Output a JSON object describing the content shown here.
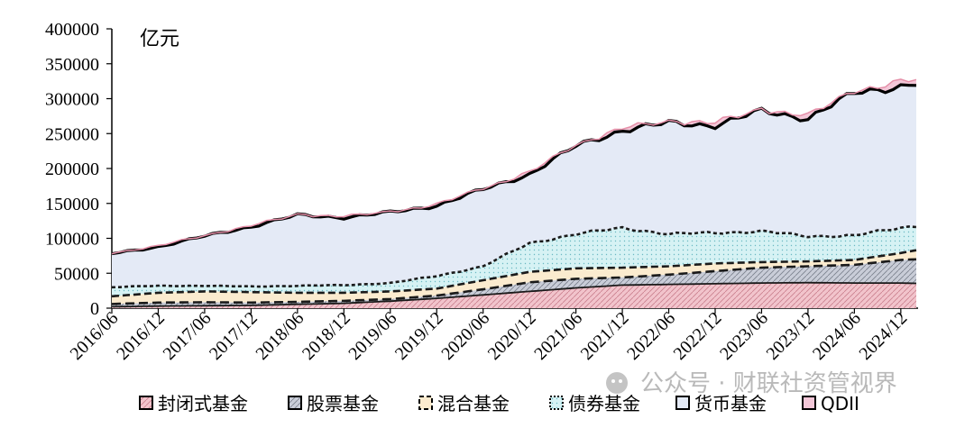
{
  "chart_data": {
    "type": "area",
    "stacked": true,
    "unit_label": "亿元",
    "ylim": [
      0,
      400000
    ],
    "y_ticks": [
      0,
      50000,
      100000,
      150000,
      200000,
      250000,
      300000,
      350000,
      400000
    ],
    "x_tick_labels": [
      "2016/06",
      "2016/12",
      "2017/06",
      "2017/12",
      "2018/06",
      "2018/12",
      "2019/06",
      "2019/12",
      "2020/06",
      "2020/12",
      "2021/06",
      "2021/12",
      "2022/06",
      "2022/12",
      "2023/06",
      "2023/12",
      "2024/06",
      "2024/12"
    ],
    "x_tick_indices": [
      0,
      6,
      12,
      18,
      24,
      30,
      36,
      42,
      48,
      54,
      60,
      66,
      72,
      78,
      84,
      90,
      96,
      102
    ],
    "cumulative_anchors": [
      [
        0,
        [
          2000,
          6000,
          17000,
          30000,
          78000,
          79000
        ]
      ],
      [
        6,
        [
          3000,
          8000,
          22000,
          32000,
          88000,
          89000
        ]
      ],
      [
        12,
        [
          3500,
          8500,
          24000,
          32000,
          103000,
          104000
        ]
      ],
      [
        18,
        [
          4000,
          8000,
          23000,
          31000,
          117000,
          118000
        ]
      ],
      [
        24,
        [
          5500,
          9000,
          22000,
          32000,
          133000,
          134000
        ]
      ],
      [
        30,
        [
          7000,
          10500,
          22000,
          33000,
          130000,
          131000
        ]
      ],
      [
        36,
        [
          10000,
          13000,
          24000,
          36000,
          137000,
          138000
        ]
      ],
      [
        42,
        [
          14000,
          18000,
          28000,
          46000,
          147000,
          148000
        ]
      ],
      [
        48,
        [
          19000,
          27000,
          40000,
          60000,
          170000,
          172000
        ]
      ],
      [
        54,
        [
          24000,
          37000,
          52000,
          93000,
          192000,
          194000
        ]
      ],
      [
        60,
        [
          29000,
          42000,
          57000,
          106000,
          232000,
          234000
        ]
      ],
      [
        66,
        [
          33000,
          44000,
          58000,
          115000,
          255000,
          257000
        ]
      ],
      [
        72,
        [
          34000,
          48000,
          60000,
          106000,
          265000,
          268000
        ]
      ],
      [
        78,
        [
          35000,
          53000,
          64000,
          108000,
          262000,
          265000
        ]
      ],
      [
        84,
        [
          36000,
          58000,
          66000,
          110000,
          282000,
          285000
        ]
      ],
      [
        90,
        [
          36500,
          60000,
          67000,
          103000,
          272000,
          275000
        ]
      ],
      [
        96,
        [
          36000,
          62000,
          69000,
          104000,
          308000,
          312000
        ]
      ],
      [
        102,
        [
          36000,
          69000,
          79000,
          115000,
          318000,
          323000
        ]
      ],
      [
        104,
        [
          35500,
          70000,
          83000,
          118000,
          322000,
          327000
        ]
      ]
    ],
    "x_count": 105,
    "series": [
      {
        "name": "封闭式基金",
        "color": "#f2c4cc",
        "stroke": "#1a1a1a",
        "pattern": "diag-red"
      },
      {
        "name": "股票基金",
        "color": "#c5cad6",
        "stroke": "#1a1a1a",
        "pattern": "diag-grey"
      },
      {
        "name": "混合基金",
        "color": "#fbebcf",
        "stroke": "#1a1a1a",
        "pattern": "none"
      },
      {
        "name": "债券基金",
        "color": "#d3f1f3",
        "stroke": "#1a1a1a",
        "pattern": "dot"
      },
      {
        "name": "货币基金",
        "color": "#e4eaf6",
        "stroke": "#000000",
        "pattern": "none"
      },
      {
        "name": "QDII",
        "color": "#f3c7d8",
        "stroke": "#000000",
        "pattern": "none"
      }
    ]
  },
  "watermark": "公众号 · 财联社资管视界"
}
